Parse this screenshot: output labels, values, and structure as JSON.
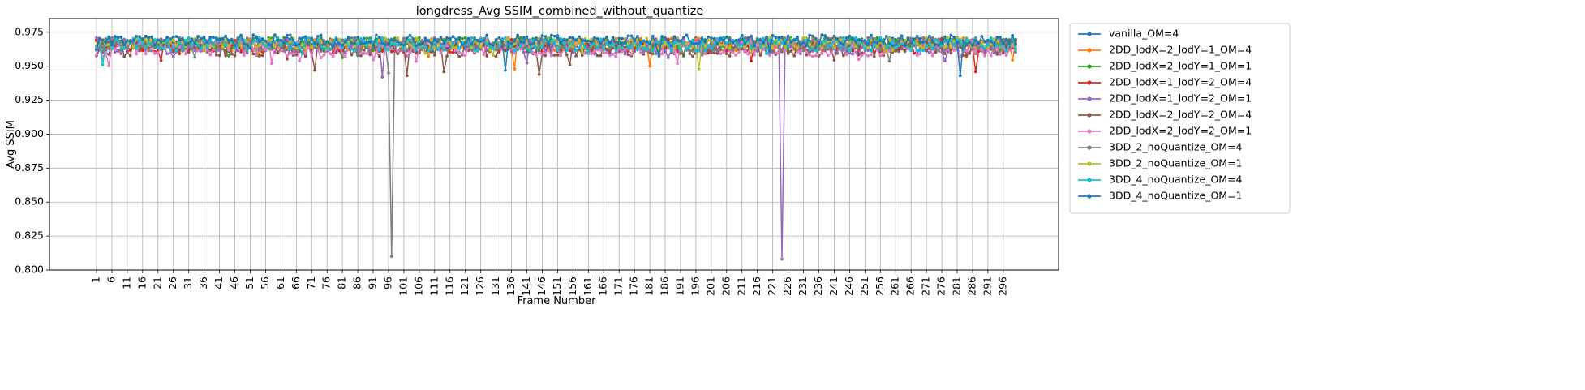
{
  "chart_data": {
    "type": "line",
    "title": "longdress_Avg SSIM_combined_without_quantize",
    "xlabel": "Frame Number",
    "ylabel": "Avg SSIM",
    "xlim": [
      1,
      300
    ],
    "ylim": [
      0.8,
      0.985
    ],
    "x_ticks": [
      1,
      6,
      11,
      16,
      21,
      26,
      31,
      36,
      41,
      46,
      51,
      56,
      61,
      66,
      71,
      76,
      81,
      86,
      91,
      96,
      101,
      106,
      111,
      116,
      121,
      126,
      131,
      136,
      141,
      146,
      151,
      156,
      161,
      166,
      171,
      176,
      181,
      186,
      191,
      196,
      201,
      206,
      211,
      216,
      221,
      226,
      231,
      236,
      241,
      246,
      251,
      256,
      261,
      266,
      271,
      276,
      281,
      286,
      291,
      296
    ],
    "y_ticks": [
      0.8,
      0.825,
      0.85,
      0.875,
      0.9,
      0.925,
      0.95,
      0.975
    ],
    "y_tick_labels": [
      "0.800",
      "0.825",
      "0.850",
      "0.875",
      "0.900",
      "0.925",
      "0.950",
      "0.975"
    ],
    "grid": true,
    "legend_position": "outside-upper-right",
    "frames": {
      "start": 1,
      "end": 300
    },
    "series": [
      {
        "name": "vanilla_OM=4",
        "color": "#1f77b4",
        "base": 0.967,
        "amp": 0.004,
        "dips": []
      },
      {
        "name": "2DD_lodX=2_lodY=1_OM=4",
        "color": "#ff7f0e",
        "base": 0.966,
        "amp": 0.005,
        "dips": [
          {
            "frame": 137,
            "value": 0.948
          },
          {
            "frame": 181,
            "value": 0.95
          }
        ]
      },
      {
        "name": "2DD_lodX=2_lodY=1_OM=1",
        "color": "#2ca02c",
        "base": 0.966,
        "amp": 0.005,
        "dips": []
      },
      {
        "name": "2DD_lodX=1_lodY=2_OM=4",
        "color": "#d62728",
        "base": 0.965,
        "amp": 0.005,
        "dips": [
          {
            "frame": 287,
            "value": 0.946
          }
        ]
      },
      {
        "name": "2DD_lodX=1_lodY=2_OM=1",
        "color": "#9467bd",
        "base": 0.965,
        "amp": 0.006,
        "dips": [
          {
            "frame": 94,
            "value": 0.942
          },
          {
            "frame": 224,
            "value": 0.808
          }
        ]
      },
      {
        "name": "2DD_lodX=2_lodY=2_OM=4",
        "color": "#8c564b",
        "base": 0.963,
        "amp": 0.006,
        "dips": [
          {
            "frame": 102,
            "value": 0.943
          },
          {
            "frame": 145,
            "value": 0.944
          },
          {
            "frame": 114,
            "value": 0.946
          },
          {
            "frame": 72,
            "value": 0.947
          }
        ]
      },
      {
        "name": "2DD_lodX=2_lodY=2_OM=1",
        "color": "#e377c2",
        "base": 0.963,
        "amp": 0.006,
        "dips": [
          {
            "frame": 58,
            "value": 0.952
          },
          {
            "frame": 249,
            "value": 0.955
          }
        ]
      },
      {
        "name": "3DD_2_noQuantize_OM=4",
        "color": "#7f7f7f",
        "base": 0.966,
        "amp": 0.005,
        "dips": [
          {
            "frame": 97,
            "value": 0.81
          },
          {
            "frame": 96,
            "value": 0.945
          }
        ]
      },
      {
        "name": "3DD_2_noQuantize_OM=1",
        "color": "#bcbd22",
        "base": 0.967,
        "amp": 0.004,
        "dips": [
          {
            "frame": 197,
            "value": 0.948
          }
        ]
      },
      {
        "name": "3DD_4_noQuantize_OM=4",
        "color": "#17becf",
        "base": 0.966,
        "amp": 0.005,
        "dips": [
          {
            "frame": 3,
            "value": 0.951
          }
        ]
      },
      {
        "name": "3DD_4_noQuantize_OM=1",
        "color": "#1f77b4",
        "base": 0.969,
        "amp": 0.004,
        "dips": [
          {
            "frame": 282,
            "value": 0.943
          },
          {
            "frame": 134,
            "value": 0.947
          }
        ]
      }
    ]
  }
}
